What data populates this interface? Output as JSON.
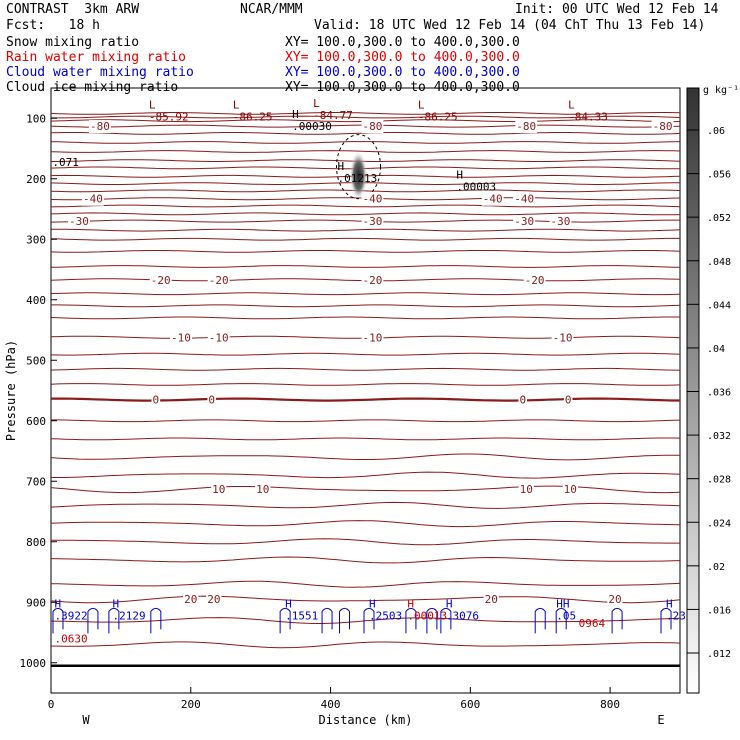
{
  "header": {
    "project": "CONTRAST  3km ARW",
    "center": "NCAR/MMM",
    "init": "Init: 00 UTC Wed 12 Feb 14",
    "fcst": "Fcst:   18 h",
    "valid": "Valid: 18 UTC Wed 12 Feb 14 (04 ChT Thu 13 Feb 14)"
  },
  "fields": [
    {
      "label": "Snow mixing ratio",
      "xy": "XY= 100.0,300.0 to 400.0,300.0",
      "color": "#000000"
    },
    {
      "label": "Rain water mixing ratio",
      "xy": "XY= 100.0,300.0 to 400.0,300.0",
      "color": "#e00000"
    },
    {
      "label": "Cloud water mixing ratio",
      "xy": "XY= 100.0,300.0 to 400.0,300.0",
      "color": "#0000cc"
    },
    {
      "label": "Cloud ice mixing ratio",
      "xy": "XY= 100.0,300.0 to 400.0,300.0",
      "color": "#000000"
    }
  ],
  "colorbar": {
    "unit": "g kg⁻¹",
    "ticks": [
      ".06",
      ".056",
      ".052",
      ".048",
      ".044",
      ".04",
      ".036",
      ".032",
      ".028",
      ".024",
      ".02",
      ".016",
      ".012"
    ]
  },
  "chart_data": {
    "type": "cross-section contour",
    "xlabel": "Distance (km)",
    "ylabel": "Pressure (hPa)",
    "xlim": [
      0,
      900
    ],
    "ylim": [
      1050,
      50
    ],
    "x_ticks": [
      "0",
      "200",
      "400",
      "600",
      "800"
    ],
    "y_ticks": [
      "100",
      "200",
      "300",
      "400",
      "500",
      "600",
      "700",
      "800",
      "900",
      "1000"
    ],
    "left_end": "W",
    "right_end": "E",
    "temperature_levels": [
      {
        "value": -80,
        "p": 113,
        "labels": [
          {
            "x": 70,
            "t": "-80"
          },
          {
            "x": 460,
            "t": "-80"
          },
          {
            "x": 680,
            "t": "-80"
          },
          {
            "x": 875,
            "t": "-80"
          }
        ]
      },
      {
        "value": -40,
        "p": 233,
        "labels": [
          {
            "x": 60,
            "t": "-40"
          },
          {
            "x": 460,
            "t": "-40"
          },
          {
            "x": 632,
            "t": "-40"
          },
          {
            "x": 677,
            "t": "-40"
          }
        ]
      },
      {
        "value": -30,
        "p": 270,
        "labels": [
          {
            "x": 40,
            "t": "-30"
          },
          {
            "x": 460,
            "t": "-30"
          },
          {
            "x": 677,
            "t": "-30"
          },
          {
            "x": 729,
            "t": "-30"
          }
        ]
      },
      {
        "value": -20,
        "p": 367,
        "labels": [
          {
            "x": 157,
            "t": "-20"
          },
          {
            "x": 240,
            "t": "-20"
          },
          {
            "x": 460,
            "t": "-20"
          },
          {
            "x": 692,
            "t": "-20"
          }
        ]
      },
      {
        "value": -10,
        "p": 462,
        "labels": [
          {
            "x": 186,
            "t": "-10"
          },
          {
            "x": 240,
            "t": "-10"
          },
          {
            "x": 460,
            "t": "-10"
          },
          {
            "x": 732,
            "t": "-10"
          }
        ]
      },
      {
        "value": 0,
        "p": 565,
        "labels": [
          {
            "x": 150,
            "t": "0"
          },
          {
            "x": 230,
            "t": "0"
          },
          {
            "x": 675,
            "t": "0"
          },
          {
            "x": 740,
            "t": "0"
          }
        ]
      },
      {
        "value": 10,
        "p": 713,
        "labels": [
          {
            "x": 240,
            "t": "10"
          },
          {
            "x": 303,
            "t": "10"
          },
          {
            "x": 680,
            "t": "10"
          },
          {
            "x": 743,
            "t": "10"
          }
        ]
      },
      {
        "value": 20,
        "p": 895,
        "labels": [
          {
            "x": 200,
            "t": "20"
          },
          {
            "x": 233,
            "t": "20"
          },
          {
            "x": 630,
            "t": "20"
          },
          {
            "x": 807,
            "t": "20"
          }
        ]
      }
    ],
    "extrema": [
      {
        "kind": "L",
        "x": 140,
        "p": 87,
        "value": "-85.92",
        "color": "#880000"
      },
      {
        "kind": "L",
        "x": 260,
        "p": 87,
        "value": "-86.25",
        "color": "#880000"
      },
      {
        "kind": "L",
        "x": 375,
        "p": 85,
        "value": "-84.77",
        "color": "#880000"
      },
      {
        "kind": "L",
        "x": 525,
        "p": 87,
        "value": "-86.25",
        "color": "#880000"
      },
      {
        "kind": "L",
        "x": 740,
        "p": 87,
        "value": "-84.33",
        "color": "#880000"
      },
      {
        "kind": "H",
        "x": 345,
        "p": 103,
        "value": ".00030",
        "color": "#000000"
      },
      {
        "kind": "",
        "x": 2,
        "p": 162,
        "value": ".071",
        "color": "#000000"
      },
      {
        "kind": "H",
        "x": 410,
        "p": 189,
        "value": ".01213",
        "color": "#000000"
      },
      {
        "kind": "H",
        "x": 580,
        "p": 203,
        "value": ".00003",
        "color": "#000000"
      },
      {
        "kind": "H",
        "x": 5,
        "p": 912,
        "value": ".3922",
        "color": "#0000cc"
      },
      {
        "kind": "H",
        "x": 88,
        "p": 912,
        "value": ".2129",
        "color": "#0000cc"
      },
      {
        "kind": "H",
        "x": 335,
        "p": 912,
        "value": ".1551",
        "color": "#0000cc"
      },
      {
        "kind": "H",
        "x": 455,
        "p": 912,
        "value": ".2503",
        "color": "#0000cc"
      },
      {
        "kind": "H",
        "x": 565,
        "p": 912,
        "value": ".3076",
        "color": "#0000cc"
      },
      {
        "kind": "HH",
        "x": 723,
        "p": 912,
        "value": ".05",
        "color": "#0000cc"
      },
      {
        "kind": "H",
        "x": 880,
        "p": 912,
        "value": ".23",
        "color": "#0000cc"
      },
      {
        "kind": "",
        "x": 5,
        "p": 950,
        "value": ".0630",
        "color": "#cc0000"
      },
      {
        "kind": "H",
        "x": 510,
        "p": 912,
        "value": ".00013",
        "color": "#cc0000"
      },
      {
        "kind": "",
        "x": 755,
        "p": 924,
        "value": "0964",
        "color": "#cc0000"
      }
    ]
  }
}
